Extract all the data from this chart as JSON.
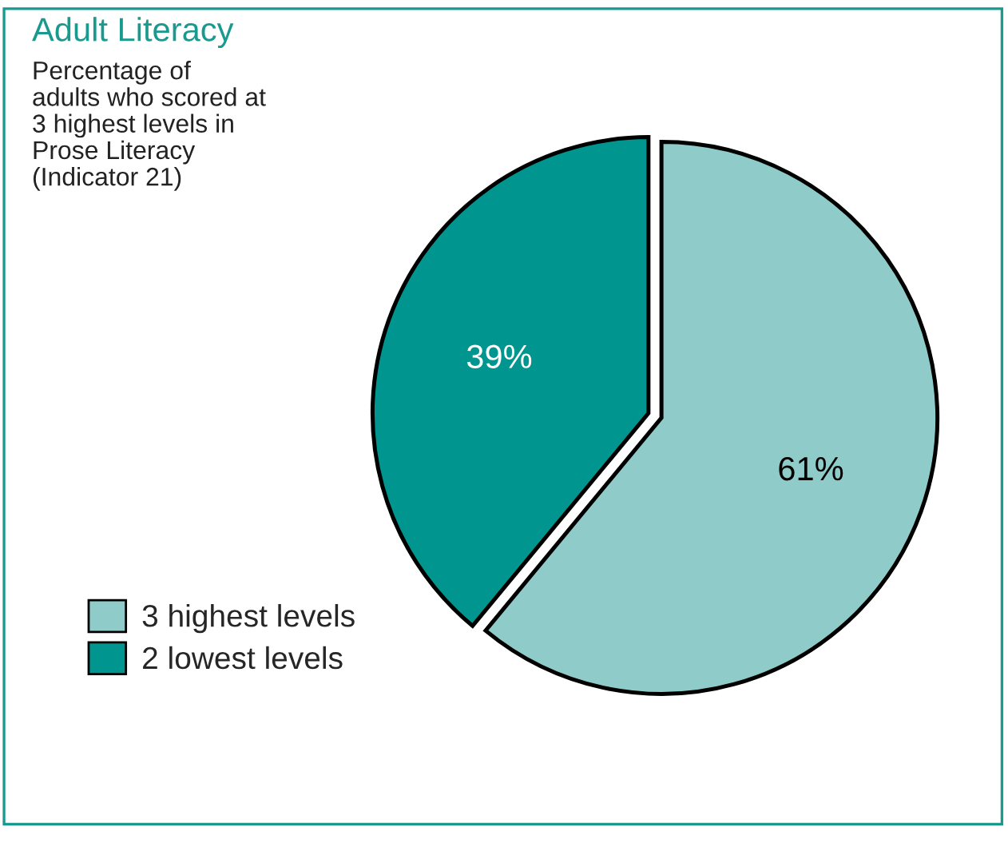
{
  "chart_data": {
    "type": "pie",
    "title": "Adult Literacy",
    "subtitle": "Percentage of\nadults who scored at\n3 highest levels in\nProse Literacy\n(Indicator 21)",
    "categories": [
      "3 highest levels",
      "2 lowest levels"
    ],
    "values": [
      61,
      39
    ],
    "colors": [
      "#8fcbc9",
      "#00968f"
    ],
    "value_labels": [
      "61%",
      "39%"
    ],
    "legend": "bottom left"
  }
}
